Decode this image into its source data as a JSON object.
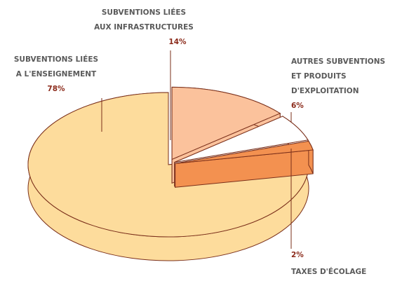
{
  "chart_data": {
    "type": "pie",
    "categories": [
      [
        "SUBVENTIONS LIÉES",
        "A L'ENSEIGNEMENT"
      ],
      [
        "SUBVENTIONS LIÉES",
        "AUX INFRASTRUCTURES"
      ],
      [
        "AUTRES SUBVENTIONS",
        "ET PRODUITS",
        "D'EXPLOITATION"
      ],
      [
        "TAXES D'ÉCOLAGE"
      ]
    ],
    "values": [
      78,
      14,
      6,
      2
    ],
    "value_labels": [
      "78%",
      "14%",
      "6%",
      "2%"
    ],
    "colors": [
      "#fddc9c",
      "#fbc29c",
      "#ffffff",
      "#f39150"
    ]
  }
}
